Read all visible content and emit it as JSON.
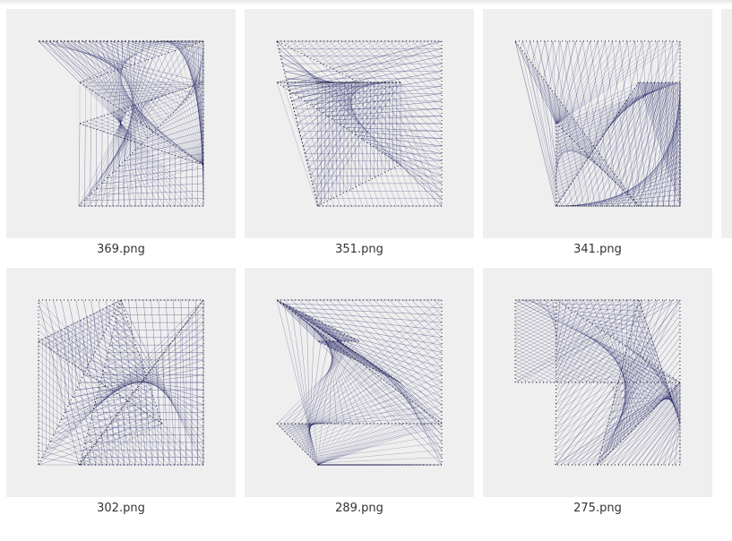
{
  "colors": {
    "stroke": "#10105a",
    "tile_bg": "#efefef",
    "caption": "#333333"
  },
  "thumbnails": [
    {
      "filename": "369.png",
      "seed": 369
    },
    {
      "filename": "351.png",
      "seed": 351
    },
    {
      "filename": "341.png",
      "seed": 341
    },
    {
      "filename": "302.png",
      "seed": 302
    },
    {
      "filename": "289.png",
      "seed": 289
    },
    {
      "filename": "275.png",
      "seed": 275
    }
  ]
}
